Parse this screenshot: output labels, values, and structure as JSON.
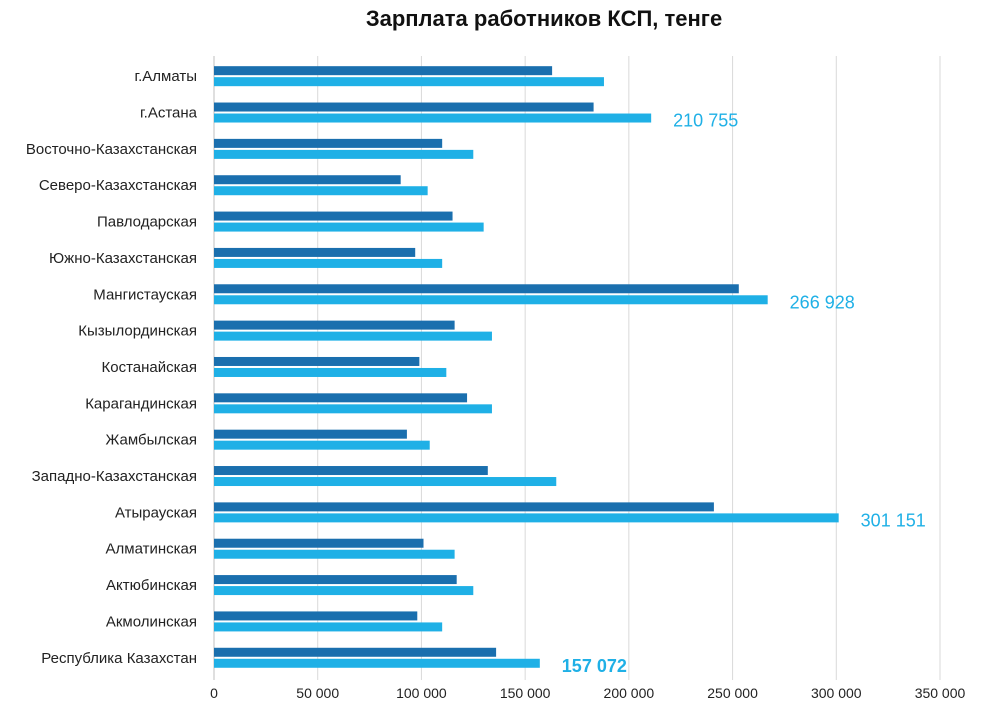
{
  "chart_data": {
    "type": "bar",
    "orientation": "horizontal",
    "title": "Зарплата работников КСП, тенге",
    "xlabel": "",
    "ylabel": "",
    "xlim": [
      0,
      350000
    ],
    "ticks": [
      0,
      50000,
      100000,
      150000,
      200000,
      250000,
      300000,
      350000
    ],
    "tick_labels": [
      "0",
      "50 000",
      "100 000",
      "150 000",
      "200 000",
      "250 000",
      "300 000",
      "350 000"
    ],
    "grid": "vertical",
    "categories": [
      "г.Алматы",
      "г.Астана",
      "Восточно-Казахстанская",
      "Северо-Казахстанская",
      "Павлодарская",
      "Южно-Казахстанская",
      "Мангистауская",
      "Кызылординская",
      "Костанайская",
      "Карагандинская",
      "Жамбылская",
      "Западно-Казахстанская",
      "Атырауская",
      "Алматинская",
      "Актюбинская",
      "Акмолинская",
      "Республика Казахстан"
    ],
    "series": [
      {
        "color": "#1a6fae",
        "values": [
          163000,
          183000,
          110000,
          90000,
          115000,
          97000,
          253000,
          116000,
          99000,
          122000,
          93000,
          132000,
          241000,
          101000,
          117000,
          98000,
          136000
        ]
      },
      {
        "color": "#1fb0e6",
        "values": [
          188000,
          210755,
          125000,
          103000,
          130000,
          110000,
          266928,
          134000,
          112000,
          134000,
          104000,
          165000,
          301151,
          116000,
          125000,
          110000,
          157072
        ]
      }
    ],
    "annotations": [
      {
        "category_index": 1,
        "series_index": 1,
        "text": "210 755",
        "bold": false
      },
      {
        "category_index": 6,
        "series_index": 1,
        "text": "266 928",
        "bold": false
      },
      {
        "category_index": 12,
        "series_index": 1,
        "text": "301 151",
        "bold": false
      },
      {
        "category_index": 16,
        "series_index": 1,
        "text": "157 072",
        "bold": true
      }
    ]
  }
}
